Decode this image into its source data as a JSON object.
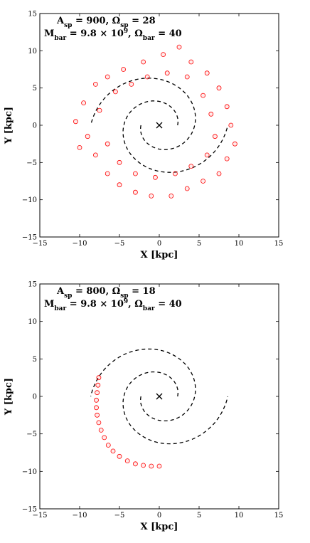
{
  "chart_data": [
    {
      "type": "scatter",
      "title": "",
      "xlabel": "X [kpc]",
      "ylabel": "Y [kpc]",
      "xlim": [
        -15,
        15
      ],
      "ylim": [
        -15,
        15
      ],
      "xticks": [
        "−15",
        "−10",
        "−5",
        "0",
        "5",
        "10",
        "15"
      ],
      "yticks": [
        "−15",
        "−10",
        "−5",
        "0",
        "5",
        "10",
        "15"
      ],
      "annotation_lines": [
        "A_sp = 900, Ω_sp = 28",
        "M_bar = 9.8 × 10^9, Ω_bar = 40"
      ],
      "center_marker": {
        "x": 0,
        "y": 0,
        "symbol": "+"
      },
      "spiral_arms": [
        {
          "r0": 2.3,
          "theta_start_deg": 180,
          "theta_end_deg": 540,
          "pitch": 0.21
        },
        {
          "r0": 2.3,
          "theta_start_deg": 0,
          "theta_end_deg": 360,
          "pitch": 0.21
        }
      ],
      "scatter_points": [
        [
          -9.5,
          3.0
        ],
        [
          -8.0,
          5.5
        ],
        [
          -6.5,
          6.5
        ],
        [
          -4.5,
          7.5
        ],
        [
          -2.0,
          8.5
        ],
        [
          0.5,
          9.5
        ],
        [
          2.5,
          10.5
        ],
        [
          4.0,
          8.5
        ],
        [
          6.0,
          7.0
        ],
        [
          7.5,
          5.0
        ],
        [
          8.5,
          2.5
        ],
        [
          9.0,
          0.0
        ],
        [
          9.5,
          -2.5
        ],
        [
          8.5,
          -4.5
        ],
        [
          7.5,
          -6.5
        ],
        [
          5.5,
          -7.5
        ],
        [
          3.5,
          -8.5
        ],
        [
          1.5,
          -9.5
        ],
        [
          -1.0,
          -9.5
        ],
        [
          -3.0,
          -9.0
        ],
        [
          -5.0,
          -8.0
        ],
        [
          -6.5,
          -6.5
        ],
        [
          -8.0,
          -4.0
        ],
        [
          -9.0,
          -1.5
        ],
        [
          -10.5,
          0.5
        ],
        [
          -10.0,
          -3.0
        ],
        [
          -7.5,
          2.0
        ],
        [
          -5.5,
          4.5
        ],
        [
          -3.5,
          5.5
        ],
        [
          -1.5,
          6.5
        ],
        [
          1.0,
          7.0
        ],
        [
          3.5,
          6.5
        ],
        [
          5.5,
          4.0
        ],
        [
          6.5,
          1.5
        ],
        [
          7.0,
          -1.5
        ],
        [
          6.0,
          -4.0
        ],
        [
          4.0,
          -5.5
        ],
        [
          2.0,
          -6.5
        ],
        [
          -0.5,
          -7.0
        ],
        [
          -3.0,
          -6.5
        ],
        [
          -5.0,
          -5.0
        ],
        [
          -6.5,
          -2.5
        ]
      ]
    },
    {
      "type": "scatter",
      "title": "",
      "xlabel": "X [kpc]",
      "ylabel": "Y [kpc]",
      "xlim": [
        -15,
        15
      ],
      "ylim": [
        -15,
        15
      ],
      "xticks": [
        "−15",
        "−10",
        "−5",
        "0",
        "5",
        "10",
        "15"
      ],
      "yticks": [
        "−15",
        "−10",
        "−5",
        "0",
        "5",
        "10",
        "15"
      ],
      "annotation_lines": [
        "A_sp = 800, Ω_sp = 18",
        "M_bar = 9.8 × 10^9, Ω_bar = 40"
      ],
      "center_marker": {
        "x": 0,
        "y": 0,
        "symbol": "+"
      },
      "spiral_arms": [
        {
          "r0": 2.3,
          "theta_start_deg": 180,
          "theta_end_deg": 540,
          "pitch": 0.21
        },
        {
          "r0": 2.3,
          "theta_start_deg": 0,
          "theta_end_deg": 360,
          "pitch": 0.21
        }
      ],
      "scatter_points": [
        [
          -7.6,
          2.5
        ],
        [
          -7.7,
          1.5
        ],
        [
          -7.8,
          0.5
        ],
        [
          -7.9,
          -0.5
        ],
        [
          -7.9,
          -1.5
        ],
        [
          -7.8,
          -2.5
        ],
        [
          -7.6,
          -3.5
        ],
        [
          -7.3,
          -4.5
        ],
        [
          -6.9,
          -5.5
        ],
        [
          -6.4,
          -6.5
        ],
        [
          -5.8,
          -7.3
        ],
        [
          -5.0,
          -8.0
        ],
        [
          -4.0,
          -8.6
        ],
        [
          -3.0,
          -9.0
        ],
        [
          -2.0,
          -9.2
        ],
        [
          -1.0,
          -9.3
        ],
        [
          0.0,
          -9.3
        ]
      ]
    }
  ]
}
